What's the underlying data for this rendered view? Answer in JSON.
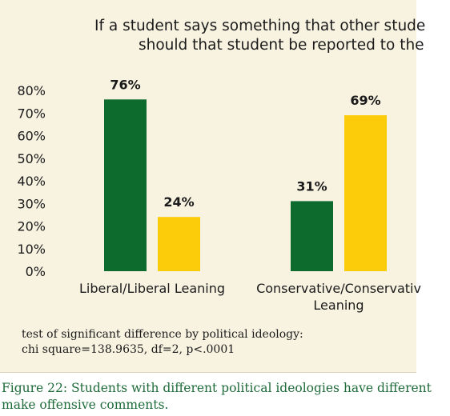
{
  "chart_data": {
    "type": "bar",
    "title_lines": [
      "If a student says something that other stude",
      "should that student be reported to the"
    ],
    "categories": [
      "Liberal/Liberal Leaning",
      "Conservative/Conservativ"
    ],
    "category_label_lines": [
      [
        "Liberal/Liberal Leaning"
      ],
      [
        "Conservative/Conservativ",
        "Leaning"
      ]
    ],
    "series": [
      {
        "values": [
          76,
          31
        ],
        "color": "#0e6b2e"
      },
      {
        "values": [
          24,
          69
        ],
        "color": "#fccc0a"
      }
    ],
    "data_labels": [
      [
        "76%",
        "31%"
      ],
      [
        "24%",
        "69%"
      ]
    ],
    "yticks": [
      "0%",
      "10%",
      "20%",
      "30%",
      "40%",
      "50%",
      "60%",
      "70%",
      "80%"
    ],
    "ylim": [
      0,
      80
    ],
    "grid": false,
    "legend": "none"
  },
  "note": {
    "line1": "test of significant difference by political ideology:",
    "line2": "chi square=138.9635, df=2, p<.0001"
  },
  "caption": {
    "line1": "Figure 22: Students with different political ideologies have different",
    "line2": "make offensive comments."
  }
}
